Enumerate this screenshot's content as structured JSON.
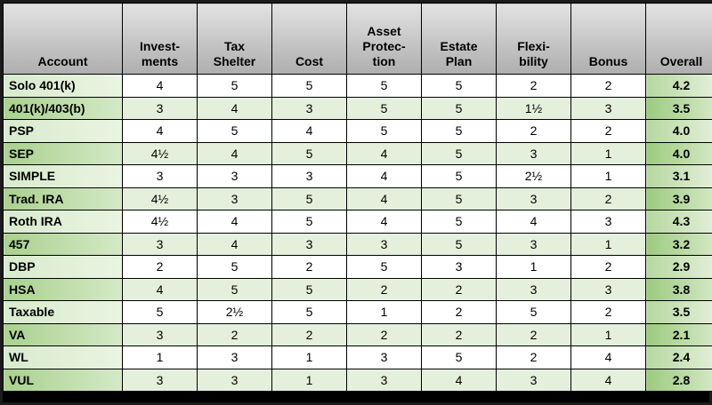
{
  "headers": {
    "account": [
      "Account"
    ],
    "investments": [
      "Invest-",
      "ments"
    ],
    "tax_shelter": [
      "Tax",
      "Shelter"
    ],
    "cost": [
      "Cost"
    ],
    "asset_protection": [
      "Asset",
      "Protec-",
      "tion"
    ],
    "estate_plan": [
      "Estate",
      "Plan"
    ],
    "flexibility": [
      "Flexi-",
      "bility"
    ],
    "bonus": [
      "Bonus"
    ],
    "overall": [
      "Overall"
    ]
  },
  "rows": [
    {
      "account": "Solo 401(k)",
      "investments": "4",
      "tax_shelter": "5",
      "cost": "5",
      "asset_protection": "5",
      "estate_plan": "5",
      "flexibility": "2",
      "bonus": "2",
      "overall": "4.2"
    },
    {
      "account": "401(k)/403(b)",
      "investments": "3",
      "tax_shelter": "4",
      "cost": "3",
      "asset_protection": "5",
      "estate_plan": "5",
      "flexibility": "1½",
      "bonus": "3",
      "overall": "3.5"
    },
    {
      "account": "PSP",
      "investments": "4",
      "tax_shelter": "5",
      "cost": "4",
      "asset_protection": "5",
      "estate_plan": "5",
      "flexibility": "2",
      "bonus": "2",
      "overall": "4.0"
    },
    {
      "account": "SEP",
      "investments": "4½",
      "tax_shelter": "4",
      "cost": "5",
      "asset_protection": "4",
      "estate_plan": "5",
      "flexibility": "3",
      "bonus": "1",
      "overall": "4.0"
    },
    {
      "account": "SIMPLE",
      "investments": "3",
      "tax_shelter": "3",
      "cost": "3",
      "asset_protection": "4",
      "estate_plan": "5",
      "flexibility": "2½",
      "bonus": "1",
      "overall": "3.1"
    },
    {
      "account": "Trad. IRA",
      "investments": "4½",
      "tax_shelter": "3",
      "cost": "5",
      "asset_protection": "4",
      "estate_plan": "5",
      "flexibility": "3",
      "bonus": "2",
      "overall": "3.9"
    },
    {
      "account": "Roth IRA",
      "investments": "4½",
      "tax_shelter": "4",
      "cost": "5",
      "asset_protection": "4",
      "estate_plan": "5",
      "flexibility": "4",
      "bonus": "3",
      "overall": "4.3"
    },
    {
      "account": "457",
      "investments": "3",
      "tax_shelter": "4",
      "cost": "3",
      "asset_protection": "3",
      "estate_plan": "5",
      "flexibility": "3",
      "bonus": "1",
      "overall": "3.2"
    },
    {
      "account": "DBP",
      "investments": "2",
      "tax_shelter": "5",
      "cost": "2",
      "asset_protection": "5",
      "estate_plan": "3",
      "flexibility": "1",
      "bonus": "2",
      "overall": "2.9"
    },
    {
      "account": "HSA",
      "investments": "4",
      "tax_shelter": "5",
      "cost": "5",
      "asset_protection": "2",
      "estate_plan": "2",
      "flexibility": "3",
      "bonus": "3",
      "overall": "3.8"
    },
    {
      "account": "Taxable",
      "investments": "5",
      "tax_shelter": "2½",
      "cost": "5",
      "asset_protection": "1",
      "estate_plan": "2",
      "flexibility": "5",
      "bonus": "2",
      "overall": "3.5"
    },
    {
      "account": "VA",
      "investments": "3",
      "tax_shelter": "2",
      "cost": "2",
      "asset_protection": "2",
      "estate_plan": "2",
      "flexibility": "2",
      "bonus": "1",
      "overall": "2.1"
    },
    {
      "account": "WL",
      "investments": "1",
      "tax_shelter": "3",
      "cost": "1",
      "asset_protection": "3",
      "estate_plan": "5",
      "flexibility": "2",
      "bonus": "4",
      "overall": "2.4"
    },
    {
      "account": "VUL",
      "investments": "3",
      "tax_shelter": "3",
      "cost": "1",
      "asset_protection": "3",
      "estate_plan": "4",
      "flexibility": "3",
      "bonus": "4",
      "overall": "2.8"
    }
  ]
}
